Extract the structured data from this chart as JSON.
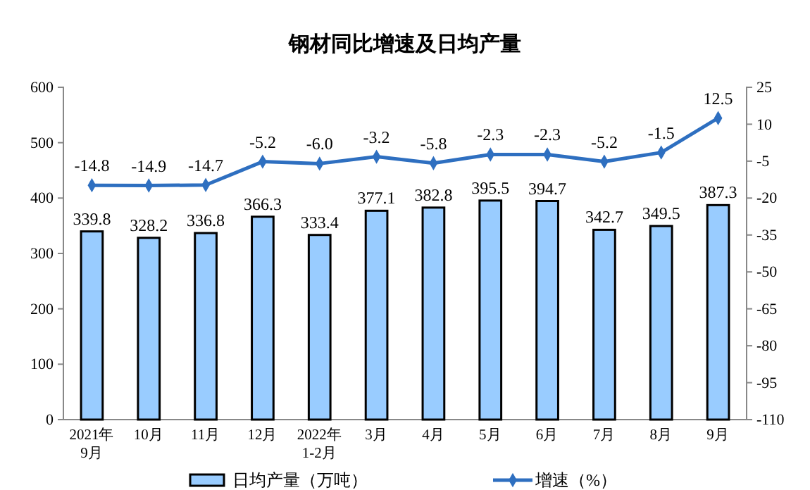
{
  "chart_data": {
    "type": "bar",
    "title": "钢材同比增速及日均产量",
    "categories": [
      "2021年\n9月",
      "10月",
      "11月",
      "12月",
      "2022年\n1-2月",
      "3月",
      "4月",
      "5月",
      "6月",
      "7月",
      "8月",
      "9月"
    ],
    "series": [
      {
        "name": "日均产量（万吨）",
        "color": "#99ccff",
        "values": [
          339.8,
          328.2,
          336.8,
          366.3,
          333.4,
          377.1,
          382.8,
          395.5,
          394.7,
          342.7,
          349.5,
          387.3
        ]
      },
      {
        "name": "增速（%）",
        "type": "line",
        "axis": "y2",
        "color": "#2e6fc0",
        "marker": "diamond",
        "values": [
          -14.8,
          -14.9,
          -14.7,
          -5.2,
          -6.0,
          -3.2,
          -5.8,
          -2.3,
          -2.3,
          -5.2,
          -1.5,
          12.5
        ],
        "value_labels": [
          "-14.8",
          "-14.9",
          "-14.7",
          "-5.2",
          "-6.0",
          "-3.2",
          "-5.8",
          "-2.3",
          "-2.3",
          "-5.2",
          "-1.5",
          "12.5"
        ]
      }
    ],
    "ylim": [
      0,
      600
    ],
    "yticks": [
      0,
      100,
      200,
      300,
      400,
      500,
      600
    ],
    "y2lim": [
      -110,
      25
    ],
    "y2ticks": [
      -110,
      -95,
      -80,
      -65,
      -50,
      -35,
      -20,
      -5,
      10,
      25
    ],
    "data_labels": true,
    "legend": "bottom",
    "grid": false
  }
}
